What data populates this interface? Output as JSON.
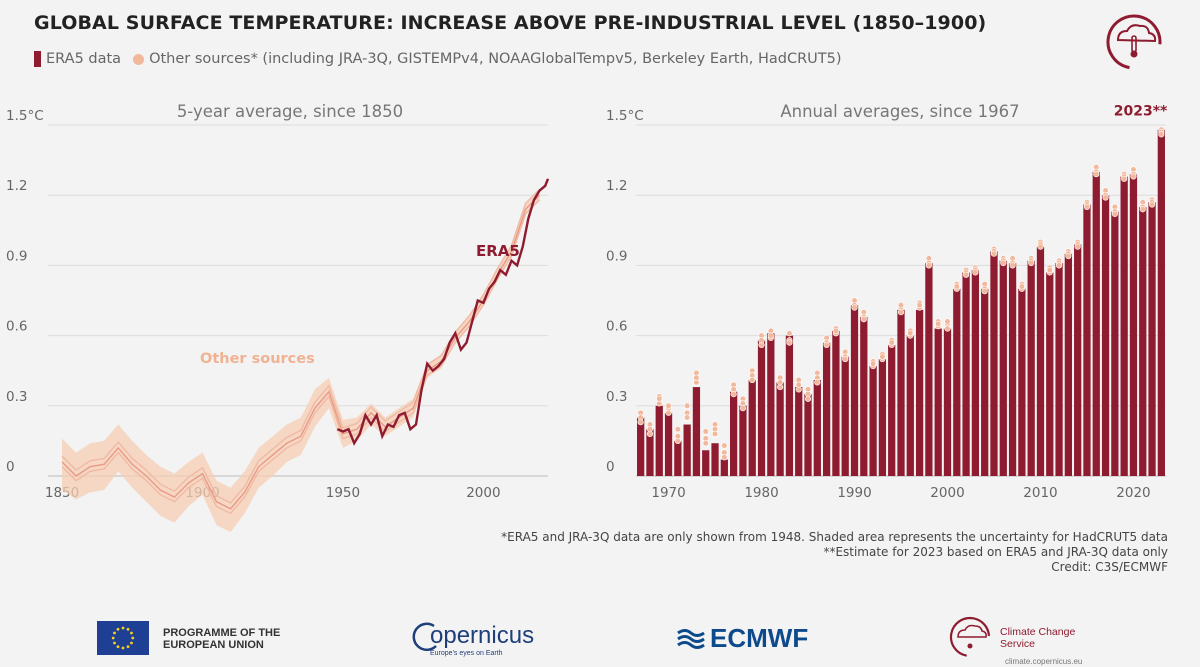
{
  "header": {
    "title": "GLOBAL SURFACE TEMPERATURE: INCREASE ABOVE PRE-INDUSTRIAL LEVEL (1850–1900)",
    "legend_era5": "ERA5 data",
    "legend_other": "Other sources* (including JRA-3Q, GISTEMPv4, NOAAGlobalTempv5, Berkeley Earth, HadCRUT5)"
  },
  "colors": {
    "era5": "#8e1b30",
    "other": "#f2b89c",
    "band": "#f7cdb4",
    "grid": "#dcdcdc"
  },
  "chart_data": [
    {
      "type": "line",
      "title": "5-year average, since 1850",
      "xlim": [
        1845,
        2023
      ],
      "ylim": [
        0,
        1.5
      ],
      "xticks": [
        1850,
        1900,
        1950,
        2000
      ],
      "yticks": [
        "0",
        "0.3",
        "0.6",
        "0.9",
        "1.2",
        "1.5°C"
      ],
      "grid": true,
      "annotations": [
        "ERA5",
        "Other sources"
      ],
      "other_sources": {
        "x": [
          1850,
          1855,
          1860,
          1865,
          1870,
          1875,
          1880,
          1885,
          1890,
          1895,
          1900,
          1905,
          1910,
          1915,
          1920,
          1925,
          1930,
          1935,
          1940,
          1945,
          1950,
          1955,
          1960,
          1965,
          1970,
          1975,
          1980,
          1985,
          1990,
          1995,
          2000,
          2005,
          2010,
          2015,
          2020
        ],
        "y": [
          0.06,
          0.0,
          0.04,
          0.05,
          0.12,
          0.05,
          0.0,
          -0.06,
          -0.09,
          -0.03,
          0.01,
          -0.11,
          -0.14,
          -0.07,
          0.04,
          0.09,
          0.14,
          0.17,
          0.29,
          0.36,
          0.18,
          0.2,
          0.27,
          0.21,
          0.25,
          0.29,
          0.45,
          0.49,
          0.59,
          0.66,
          0.75,
          0.86,
          0.96,
          1.14,
          1.2
        ],
        "lower": [
          -0.06,
          -0.1,
          -0.07,
          -0.06,
          0.02,
          -0.05,
          -0.11,
          -0.17,
          -0.2,
          -0.13,
          -0.08,
          -0.21,
          -0.24,
          -0.16,
          -0.05,
          0.0,
          0.06,
          0.09,
          0.21,
          0.29,
          0.12,
          0.15,
          0.22,
          0.17,
          0.21,
          0.25,
          0.42,
          0.46,
          0.57,
          0.64,
          0.73,
          0.84,
          0.94,
          1.12,
          1.18
        ],
        "upper": [
          0.16,
          0.1,
          0.14,
          0.15,
          0.22,
          0.15,
          0.09,
          0.04,
          0.01,
          0.06,
          0.1,
          -0.02,
          -0.05,
          0.02,
          0.12,
          0.17,
          0.22,
          0.25,
          0.37,
          0.42,
          0.24,
          0.25,
          0.31,
          0.25,
          0.29,
          0.33,
          0.48,
          0.52,
          0.62,
          0.68,
          0.78,
          0.89,
          0.98,
          1.16,
          1.22
        ]
      },
      "era5": {
        "x": [
          1948,
          1950,
          1952,
          1954,
          1956,
          1958,
          1960,
          1962,
          1964,
          1966,
          1968,
          1970,
          1972,
          1974,
          1976,
          1978,
          1980,
          1982,
          1984,
          1986,
          1988,
          1990,
          1992,
          1994,
          1996,
          1998,
          2000,
          2002,
          2004,
          2006,
          2008,
          2010,
          2012,
          2014,
          2016,
          2018,
          2020,
          2022,
          2023
        ],
        "y": [
          0.2,
          0.19,
          0.2,
          0.14,
          0.18,
          0.26,
          0.22,
          0.26,
          0.17,
          0.22,
          0.21,
          0.26,
          0.27,
          0.2,
          0.22,
          0.37,
          0.48,
          0.45,
          0.47,
          0.5,
          0.57,
          0.61,
          0.54,
          0.57,
          0.66,
          0.75,
          0.74,
          0.8,
          0.83,
          0.88,
          0.86,
          0.92,
          0.9,
          0.98,
          1.1,
          1.18,
          1.22,
          1.24,
          1.27
        ]
      }
    },
    {
      "type": "bar",
      "title": "Annual averages, since 1967",
      "ylim": [
        0,
        1.5
      ],
      "xticks": [
        1970,
        1980,
        1990,
        2000,
        2010,
        2020
      ],
      "yticks": [
        "0",
        "0.3",
        "0.6",
        "0.9",
        "1.2",
        "1.5°C"
      ],
      "grid": true,
      "annotation": "2023**",
      "categories": [
        1967,
        1968,
        1969,
        1970,
        1971,
        1972,
        1973,
        1974,
        1975,
        1976,
        1977,
        1978,
        1979,
        1980,
        1981,
        1982,
        1983,
        1984,
        1985,
        1986,
        1987,
        1988,
        1989,
        1990,
        1991,
        1992,
        1993,
        1994,
        1995,
        1996,
        1997,
        1998,
        1999,
        2000,
        2001,
        2002,
        2003,
        2004,
        2005,
        2006,
        2007,
        2008,
        2009,
        2010,
        2011,
        2012,
        2013,
        2014,
        2015,
        2016,
        2017,
        2018,
        2019,
        2020,
        2021,
        2022,
        2023
      ],
      "era5": [
        0.25,
        0.2,
        0.3,
        0.27,
        0.15,
        0.22,
        0.38,
        0.11,
        0.14,
        0.07,
        0.36,
        0.3,
        0.41,
        0.58,
        0.61,
        0.4,
        0.6,
        0.38,
        0.35,
        0.41,
        0.57,
        0.62,
        0.51,
        0.73,
        0.68,
        0.47,
        0.5,
        0.56,
        0.71,
        0.6,
        0.71,
        0.91,
        0.63,
        0.63,
        0.8,
        0.87,
        0.88,
        0.8,
        0.96,
        0.92,
        0.91,
        0.8,
        0.92,
        0.98,
        0.87,
        0.91,
        0.95,
        0.99,
        1.16,
        1.3,
        1.2,
        1.13,
        1.28,
        1.29,
        1.15,
        1.17,
        1.48
      ],
      "other_sources": [
        [
          0.27,
          0.25,
          0.23
        ],
        [
          0.22,
          0.18,
          0.2
        ],
        [
          0.34,
          0.31,
          0.33
        ],
        [
          0.29,
          0.27,
          0.3
        ],
        [
          0.2,
          0.15,
          0.17
        ],
        [
          0.3,
          0.27,
          0.25
        ],
        [
          0.44,
          0.4,
          0.42
        ],
        [
          0.19,
          0.16,
          0.14
        ],
        [
          0.22,
          0.2,
          0.18
        ],
        [
          0.13,
          0.1,
          0.08
        ],
        [
          0.39,
          0.37,
          0.35
        ],
        [
          0.33,
          0.31,
          0.29
        ],
        [
          0.45,
          0.43,
          0.41
        ],
        [
          0.6,
          0.56,
          0.58
        ],
        [
          0.62,
          0.59,
          0.6
        ],
        [
          0.42,
          0.38,
          0.4
        ],
        [
          0.61,
          0.58,
          0.57
        ],
        [
          0.41,
          0.37,
          0.39
        ],
        [
          0.37,
          0.35,
          0.33
        ],
        [
          0.44,
          0.42,
          0.4
        ],
        [
          0.59,
          0.57,
          0.56
        ],
        [
          0.63,
          0.61,
          0.62
        ],
        [
          0.53,
          0.51,
          0.5
        ],
        [
          0.75,
          0.73,
          0.72
        ],
        [
          0.7,
          0.68,
          0.67
        ],
        [
          0.49,
          0.47,
          0.48
        ],
        [
          0.52,
          0.5,
          0.51
        ],
        [
          0.58,
          0.56,
          0.57
        ],
        [
          0.72,
          0.7,
          0.73
        ],
        [
          0.62,
          0.6,
          0.61
        ],
        [
          0.74,
          0.72,
          0.73
        ],
        [
          0.93,
          0.91,
          0.9
        ],
        [
          0.66,
          0.64,
          0.65
        ],
        [
          0.65,
          0.63,
          0.66
        ],
        [
          0.82,
          0.8,
          0.81
        ],
        [
          0.88,
          0.87,
          0.86
        ],
        [
          0.89,
          0.88,
          0.87
        ],
        [
          0.82,
          0.8,
          0.79
        ],
        [
          0.97,
          0.96,
          0.95
        ],
        [
          0.93,
          0.92,
          0.91
        ],
        [
          0.93,
          0.91,
          0.9
        ],
        [
          0.82,
          0.8,
          0.81
        ],
        [
          0.93,
          0.92,
          0.91
        ],
        [
          1.0,
          0.99,
          0.98
        ],
        [
          0.89,
          0.87,
          0.88
        ],
        [
          0.92,
          0.91,
          0.9
        ],
        [
          0.96,
          0.95,
          0.94
        ],
        [
          1.0,
          0.99,
          0.98
        ],
        [
          1.17,
          1.16,
          1.15
        ],
        [
          1.32,
          1.3,
          1.29
        ],
        [
          1.22,
          1.2,
          1.19
        ],
        [
          1.15,
          1.13,
          1.12
        ],
        [
          1.29,
          1.28,
          1.27
        ],
        [
          1.31,
          1.29,
          1.28
        ],
        [
          1.17,
          1.15,
          1.14
        ],
        [
          1.18,
          1.17,
          1.16
        ],
        [
          1.48,
          1.47,
          1.46
        ]
      ]
    }
  ],
  "footnotes": [
    "*ERA5 and JRA-3Q data are only shown from 1948. Shaded area represents the uncertainty for HadCRUT5 data",
    "**Estimate for 2023 based on ERA5 and JRA-3Q data only",
    "Credit: C3S/ECMWF"
  ],
  "logos": {
    "eu": "PROGRAMME OF THE EUROPEAN UNION",
    "copernicus": "opernicus",
    "copernicus_tagline": "Europe's eyes on Earth",
    "ecmwf": "ECMWF",
    "c3s": "Climate Change Service",
    "c3s_url": "climate.copernicus.eu"
  }
}
